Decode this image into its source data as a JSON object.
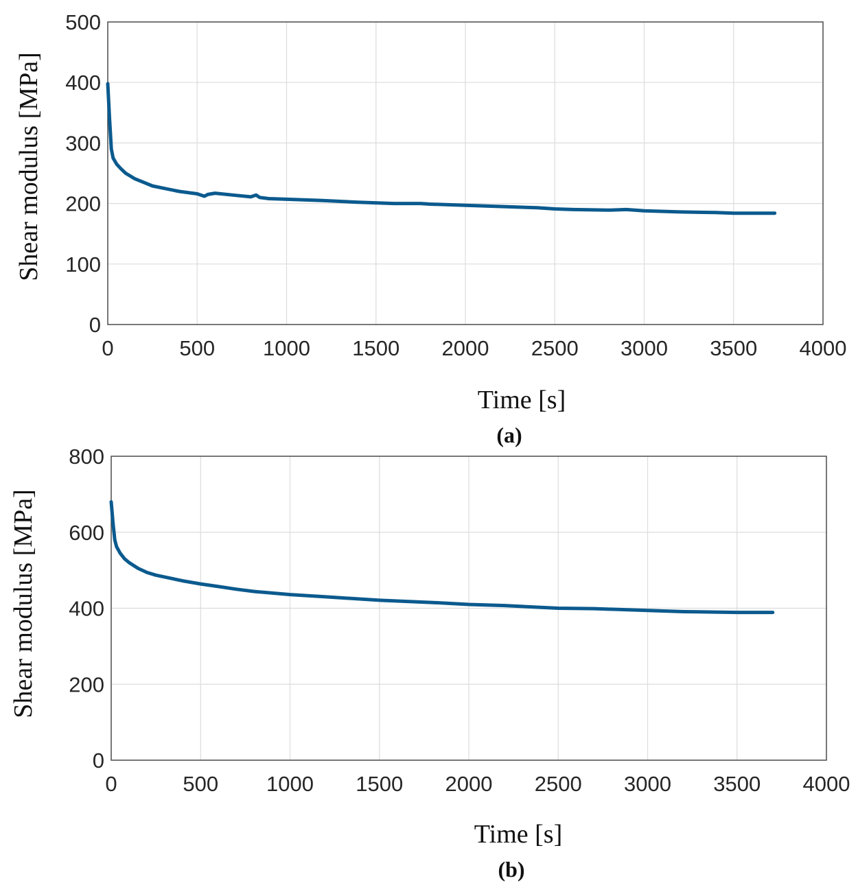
{
  "colors": {
    "series": "#0b5a8e",
    "grid": "#dcdcdc",
    "axes": "#4a4a4a"
  },
  "chart_data": [
    {
      "type": "line",
      "panel_label": "(a)",
      "title": "",
      "xlabel": "Time [s]",
      "ylabel": "Shear modulus [MPa]",
      "xlim": [
        0,
        4000
      ],
      "ylim": [
        0,
        500
      ],
      "xticks": [
        0,
        500,
        1000,
        1500,
        2000,
        2500,
        3000,
        3500,
        4000
      ],
      "yticks": [
        0,
        100,
        200,
        300,
        400,
        500
      ],
      "xtick_labels": [
        "0",
        "500",
        "1000",
        "1500",
        "2000",
        "2500",
        "3000",
        "3500",
        "4000"
      ],
      "ytick_labels": [
        "0",
        "100",
        "200",
        "300",
        "400",
        "500"
      ],
      "grid": true,
      "series": [
        {
          "name": "Shear modulus",
          "x": [
            0,
            10,
            20,
            30,
            50,
            75,
            100,
            150,
            200,
            250,
            300,
            400,
            500,
            540,
            560,
            600,
            700,
            800,
            830,
            850,
            900,
            1000,
            1200,
            1400,
            1600,
            1750,
            1800,
            2000,
            2200,
            2400,
            2500,
            2600,
            2800,
            2900,
            3000,
            3200,
            3400,
            3500,
            3600,
            3730
          ],
          "y": [
            398,
            340,
            290,
            275,
            265,
            257,
            250,
            241,
            235,
            229,
            226,
            220,
            216,
            212,
            215,
            217,
            214,
            211,
            214,
            210,
            208,
            207,
            205,
            202,
            200,
            200,
            199,
            197,
            195,
            193,
            191,
            190,
            189,
            190,
            188,
            186,
            185,
            184,
            184,
            184
          ]
        }
      ]
    },
    {
      "type": "line",
      "panel_label": "(b)",
      "title": "",
      "xlabel": "Time [s]",
      "ylabel": "Shear modulus [MPa]",
      "xlim": [
        0,
        4000
      ],
      "ylim": [
        0,
        800
      ],
      "xticks": [
        0,
        500,
        1000,
        1500,
        2000,
        2500,
        3000,
        3500,
        4000
      ],
      "yticks": [
        0,
        200,
        400,
        600,
        800
      ],
      "xtick_labels": [
        "0",
        "500",
        "1000",
        "1500",
        "2000",
        "2500",
        "3000",
        "3500",
        "4000"
      ],
      "ytick_labels": [
        "0",
        "200",
        "400",
        "600",
        "800"
      ],
      "grid": true,
      "series": [
        {
          "name": "Shear modulus",
          "x": [
            0,
            10,
            20,
            30,
            50,
            75,
            100,
            150,
            200,
            250,
            300,
            400,
            500,
            600,
            700,
            800,
            1000,
            1200,
            1500,
            1800,
            2000,
            2200,
            2500,
            2700,
            3000,
            3200,
            3500,
            3700
          ],
          "y": [
            680,
            625,
            580,
            562,
            545,
            530,
            520,
            505,
            494,
            487,
            482,
            472,
            464,
            457,
            450,
            444,
            436,
            430,
            421,
            415,
            410,
            407,
            400,
            399,
            394,
            391,
            389,
            389
          ]
        }
      ]
    }
  ]
}
